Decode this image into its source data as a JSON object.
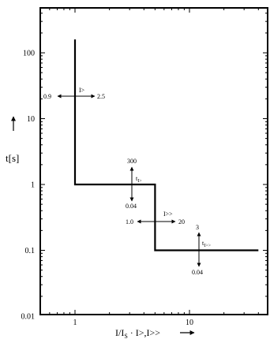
{
  "chart_data": {
    "type": "line",
    "title": "",
    "x_scale": "log",
    "y_scale": "log",
    "xlim": [
      0.5,
      50
    ],
    "ylim": [
      0.01,
      500
    ],
    "x_ticks": [
      1,
      10
    ],
    "x_tick_labels": [
      "1",
      "10"
    ],
    "y_ticks": [
      0.01,
      0.1,
      1,
      10,
      100
    ],
    "y_tick_labels": [
      "0.01",
      "0.1",
      "1",
      "10",
      "100"
    ],
    "xlabel": "I/I",
    "xlabel_sub": "S",
    "xlabel_tail": " · I>,I>>",
    "ylabel": "t[s]",
    "series": [
      {
        "x": [
          1,
          1,
          5,
          5,
          40
        ],
        "y": [
          160,
          1,
          1,
          0.1,
          0.1
        ]
      }
    ],
    "annotations": {
      "i_low": {
        "name": "I>",
        "min": "0.9",
        "max": "2.5"
      },
      "t_low": {
        "name": "t",
        "sub": "I>",
        "min": "0.04",
        "max": "300"
      },
      "i_high": {
        "name": "I>>",
        "min": "1.0",
        "max": "20"
      },
      "t_high": {
        "name": "t",
        "sub": "I>>",
        "min": "0.04",
        "max": "3"
      }
    },
    "grid": false,
    "legend": "none"
  }
}
